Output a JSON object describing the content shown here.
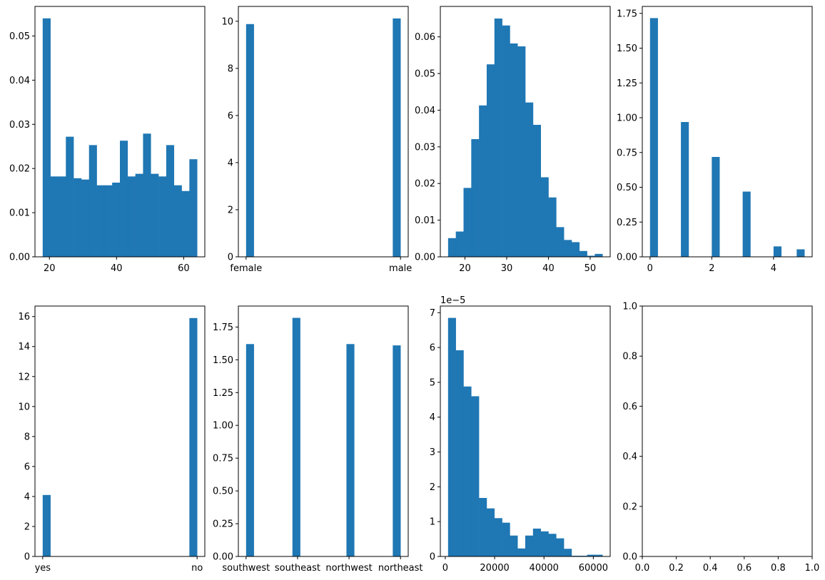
{
  "style": {
    "bar_color": "#1f77b4",
    "axis_color": "#000000",
    "background": "#ffffff"
  },
  "chart_data": [
    {
      "id": "age",
      "type": "histogram",
      "density": true,
      "bin_edges": [
        18,
        20.3,
        22.6,
        24.9,
        27.2,
        29.5,
        31.8,
        34.1,
        36.4,
        38.7,
        41,
        43.3,
        45.6,
        47.9,
        50.2,
        52.5,
        54.8,
        57.1,
        59.4,
        61.7,
        64
      ],
      "values": [
        0.054,
        0.0182,
        0.0182,
        0.0272,
        0.0178,
        0.0175,
        0.0253,
        0.0162,
        0.0162,
        0.0168,
        0.0263,
        0.0182,
        0.0188,
        0.0279,
        0.0188,
        0.0182,
        0.0253,
        0.0162,
        0.0149,
        0.0221
      ],
      "xlim": [
        15.7,
        66.3
      ],
      "ylim": [
        0,
        0.0567
      ],
      "x_ticks": [
        20,
        40,
        60
      ],
      "x_tick_labels": [
        "20",
        "40",
        "60"
      ],
      "y_ticks": [
        0,
        0.01,
        0.02,
        0.03,
        0.04,
        0.05
      ],
      "y_tick_labels": [
        "0.00",
        "0.01",
        "0.02",
        "0.03",
        "0.04",
        "0.05"
      ]
    },
    {
      "id": "sex",
      "type": "histogram",
      "density": true,
      "bin_edges": [
        0,
        0.05,
        0.1,
        0.15,
        0.2,
        0.25,
        0.3,
        0.35,
        0.4,
        0.45,
        0.5,
        0.55,
        0.6,
        0.65,
        0.7,
        0.75,
        0.8,
        0.85,
        0.9,
        0.95,
        1
      ],
      "values": [
        9.88,
        0,
        0,
        0,
        0,
        0,
        0,
        0,
        0,
        0,
        0,
        0,
        0,
        0,
        0,
        0,
        0,
        0,
        0,
        10.12
      ],
      "xlim": [
        -0.05,
        1.05
      ],
      "ylim": [
        0,
        10.63
      ],
      "x_ticks": [
        0,
        1
      ],
      "x_tick_labels": [
        "female",
        "male"
      ],
      "y_ticks": [
        0,
        2,
        4,
        6,
        8,
        10
      ],
      "y_tick_labels": [
        "0",
        "2",
        "4",
        "6",
        "8",
        "10"
      ]
    },
    {
      "id": "bmi",
      "type": "histogram",
      "density": true,
      "bin_edges": [
        15.96,
        17.81,
        19.66,
        21.51,
        23.36,
        25.21,
        27.06,
        28.91,
        30.76,
        32.61,
        34.46,
        36.31,
        38.16,
        40.01,
        41.86,
        43.71,
        45.56,
        47.41,
        49.26,
        51.11,
        52.96
      ],
      "values": [
        0.0051,
        0.0069,
        0.0188,
        0.0321,
        0.0413,
        0.0525,
        0.065,
        0.0631,
        0.0582,
        0.0574,
        0.0421,
        0.036,
        0.0217,
        0.0162,
        0.0081,
        0.0046,
        0.004,
        0.0016,
        0.0003,
        0.0008
      ],
      "xlim": [
        14.1,
        54.8
      ],
      "ylim": [
        0,
        0.0683
      ],
      "x_ticks": [
        20,
        30,
        40,
        50
      ],
      "x_tick_labels": [
        "20",
        "30",
        "40",
        "50"
      ],
      "y_ticks": [
        0,
        0.01,
        0.02,
        0.03,
        0.04,
        0.05,
        0.06
      ],
      "y_tick_labels": [
        "0.00",
        "0.01",
        "0.02",
        "0.03",
        "0.04",
        "0.05",
        "0.06"
      ]
    },
    {
      "id": "children",
      "type": "histogram",
      "density": true,
      "bin_edges": [
        0,
        0.25,
        0.5,
        0.75,
        1,
        1.25,
        1.5,
        1.75,
        2,
        2.25,
        2.5,
        2.75,
        3,
        3.25,
        3.5,
        3.75,
        4,
        4.25,
        4.5,
        4.75,
        5
      ],
      "values": [
        1.716,
        0,
        0,
        0,
        0.969,
        0,
        0,
        0,
        0.718,
        0,
        0,
        0,
        0.469,
        0,
        0,
        0,
        0.075,
        0,
        0,
        0.054
      ],
      "xlim": [
        -0.25,
        5.25
      ],
      "ylim": [
        0,
        1.8
      ],
      "x_ticks": [
        0,
        2,
        4
      ],
      "x_tick_labels": [
        "0",
        "2",
        "4"
      ],
      "y_ticks": [
        0,
        0.25,
        0.5,
        0.75,
        1,
        1.25,
        1.5,
        1.75
      ],
      "y_tick_labels": [
        "0.00",
        "0.25",
        "0.50",
        "0.75",
        "1.00",
        "1.25",
        "1.50",
        "1.75"
      ]
    },
    {
      "id": "smoker",
      "type": "histogram",
      "density": true,
      "bin_edges": [
        0,
        0.05,
        0.1,
        0.15,
        0.2,
        0.25,
        0.3,
        0.35,
        0.4,
        0.45,
        0.5,
        0.55,
        0.6,
        0.65,
        0.7,
        0.75,
        0.8,
        0.85,
        0.9,
        0.95,
        1
      ],
      "values": [
        4.1,
        0,
        0,
        0,
        0,
        0,
        0,
        0,
        0,
        0,
        0,
        0,
        0,
        0,
        0,
        0,
        0,
        0,
        0,
        15.9
      ],
      "xlim": [
        -0.05,
        1.05
      ],
      "ylim": [
        0,
        16.7
      ],
      "x_ticks": [
        0,
        1
      ],
      "x_tick_labels": [
        "yes",
        "no"
      ],
      "y_ticks": [
        0,
        2,
        4,
        6,
        8,
        10,
        12,
        14,
        16
      ],
      "y_tick_labels": [
        "0",
        "2",
        "4",
        "6",
        "8",
        "10",
        "12",
        "14",
        "16"
      ]
    },
    {
      "id": "region",
      "type": "histogram",
      "density": true,
      "bin_edges": [
        0,
        0.15,
        0.3,
        0.45,
        0.6,
        0.75,
        0.9,
        1.05,
        1.2,
        1.35,
        1.5,
        1.65,
        1.8,
        1.95,
        2.1,
        2.25,
        2.4,
        2.55,
        2.7,
        2.85,
        3
      ],
      "values": [
        1.62,
        0,
        0,
        0,
        0,
        0,
        1.82,
        0,
        0,
        0,
        0,
        0,
        0,
        1.62,
        0,
        0,
        0,
        0,
        0,
        1.61
      ],
      "xlim": [
        -0.15,
        3.15
      ],
      "ylim": [
        0,
        1.91
      ],
      "x_ticks": [
        0,
        1,
        2,
        3
      ],
      "x_tick_labels": [
        "southwest",
        "southeast",
        "northwest",
        "northeast"
      ],
      "y_ticks": [
        0,
        0.25,
        0.5,
        0.75,
        1,
        1.25,
        1.5,
        1.75
      ],
      "y_tick_labels": [
        "0.00",
        "0.25",
        "0.50",
        "0.75",
        "1.00",
        "1.25",
        "1.50",
        "1.75"
      ]
    },
    {
      "id": "charges",
      "type": "histogram",
      "density": true,
      "bin_edges": [
        1121.9,
        4250.9,
        7379.9,
        10508.9,
        13637.9,
        16766.9,
        19895.9,
        23024.9,
        26153.9,
        29282.9,
        32411.9,
        35540.9,
        38669.9,
        41798.9,
        44927.9,
        48056.9,
        51185.9,
        54314.9,
        57443.9,
        60572.9,
        63701.9
      ],
      "values": [
        6.85,
        5.92,
        4.88,
        4.6,
        1.68,
        1.38,
        1.1,
        0.97,
        0.6,
        0.23,
        0.6,
        0.8,
        0.72,
        0.65,
        0.52,
        0.22,
        0.02,
        0.02,
        0.05,
        0.05
      ],
      "xlim": [
        -2007,
        66831
      ],
      "ylim": [
        0,
        7.19
      ],
      "x_ticks": [
        0,
        20000,
        40000,
        60000
      ],
      "x_tick_labels": [
        "0",
        "20000",
        "40000",
        "60000"
      ],
      "y_ticks": [
        0,
        1,
        2,
        3,
        4,
        5,
        6,
        7
      ],
      "y_tick_labels": [
        "0",
        "1",
        "2",
        "3",
        "4",
        "5",
        "6",
        "7"
      ],
      "y_offset_label": "1e−5"
    },
    {
      "id": "empty",
      "type": "empty",
      "bin_edges": [],
      "values": [],
      "xlim": [
        0,
        1
      ],
      "ylim": [
        0,
        1
      ],
      "x_ticks": [
        0,
        0.2,
        0.4,
        0.6,
        0.8,
        1
      ],
      "x_tick_labels": [
        "0.0",
        "0.2",
        "0.4",
        "0.6",
        "0.8",
        "1.0"
      ],
      "y_ticks": [
        0,
        0.2,
        0.4,
        0.6,
        0.8,
        1
      ],
      "y_tick_labels": [
        "0.0",
        "0.2",
        "0.4",
        "0.6",
        "0.8",
        "1.0"
      ]
    }
  ]
}
